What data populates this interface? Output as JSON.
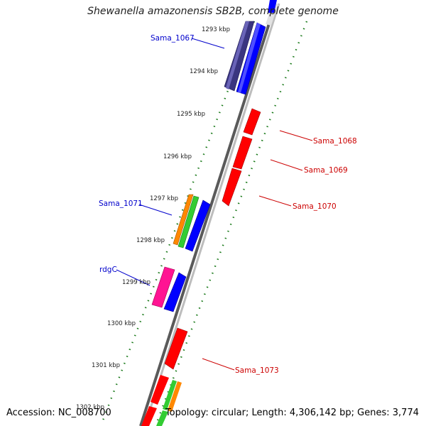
{
  "header": {
    "title": "Shewanella amazonensis SB2B, complete genome"
  },
  "footer": {
    "accession": "Accession: NC_008700",
    "summary": "Topology: circular; Length: 4,306,142 bp; Genes: 3,774"
  },
  "colors": {
    "backbone": "#888888",
    "tick": "#1a7a1a",
    "forward_label": "#0000cc",
    "reverse_label": "#cc0000",
    "blue": "#0000ff",
    "dark_blue": "#3a3580",
    "red": "#ff0000",
    "orange": "#ff8800",
    "green": "#33cc33",
    "pink": "#ff1493"
  },
  "ruler": {
    "ticks": [
      "1293 kbp",
      "1294 kbp",
      "1295 kbp",
      "1296 kbp",
      "1297 kbp",
      "1298 kbp",
      "1299 kbp",
      "1300 kbp",
      "1301 kbp",
      "1302 kbp"
    ]
  },
  "gene_labels": [
    {
      "text": "Sama_1067",
      "strand": "forward"
    },
    {
      "text": "Sama_1068",
      "strand": "reverse"
    },
    {
      "text": "Sama_1069",
      "strand": "reverse"
    },
    {
      "text": "Sama_1070",
      "strand": "reverse"
    },
    {
      "text": "Sama_1071",
      "strand": "forward"
    },
    {
      "text": "rdgC",
      "strand": "forward"
    },
    {
      "text": "Sama_1073",
      "strand": "reverse"
    }
  ],
  "genes": [
    {
      "name": "dark-blue-forward-gene",
      "color": "dark_blue",
      "strand": "forward",
      "lane": "outer"
    },
    {
      "name": "blue-forward-gene",
      "color": "blue",
      "strand": "forward",
      "lane": "inner"
    },
    {
      "name": "red-reverse-gene",
      "color": "red",
      "strand": "reverse"
    },
    {
      "name": "orange-forward-gene",
      "color": "orange",
      "strand": "forward"
    },
    {
      "name": "green-forward-gene",
      "color": "green",
      "strand": "forward"
    },
    {
      "name": "pink-forward-gene",
      "color": "pink",
      "strand": "forward"
    }
  ]
}
